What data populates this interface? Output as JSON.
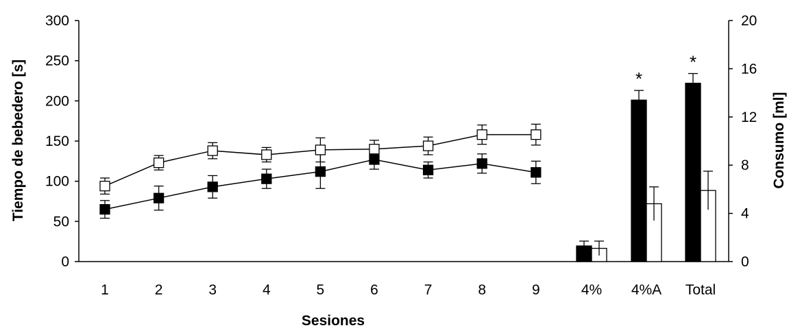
{
  "chart_data": {
    "type": "line+bar",
    "categories": [
      "1",
      "2",
      "3",
      "4",
      "5",
      "6",
      "7",
      "8",
      "9"
    ],
    "xlabel": "Sesiones",
    "ylabel_left": "Tiempo de bebedero [s]",
    "ylabel_right": "Consumo [ml]",
    "ylim_left": [
      0,
      300
    ],
    "yticks_left": [
      0,
      50,
      100,
      150,
      200,
      250,
      300
    ],
    "ylim_right": [
      0,
      20
    ],
    "yticks_right": [
      0,
      4,
      8,
      12,
      16,
      20
    ],
    "line_series": [
      {
        "marker": "filled-square",
        "values": [
          65,
          79,
          93,
          103,
          112,
          127,
          114,
          122,
          111
        ],
        "errors": [
          11,
          15,
          14,
          12,
          21,
          12,
          10,
          12,
          14
        ]
      },
      {
        "marker": "open-square",
        "values": [
          94,
          123,
          138,
          133,
          139,
          140,
          144,
          158,
          158
        ],
        "errors": [
          10,
          9,
          10,
          9,
          15,
          11,
          11,
          12,
          13
        ]
      }
    ],
    "bar_categories": [
      "4%",
      "4%A",
      "Total"
    ],
    "bar_series": [
      {
        "fill": "black",
        "values": [
          1.3,
          13.4,
          14.8
        ],
        "errors": [
          0.4,
          0.8,
          0.8
        ]
      },
      {
        "fill": "white",
        "values": [
          1.1,
          4.8,
          5.9
        ],
        "errors": [
          0.6,
          1.4,
          1.6
        ]
      }
    ],
    "annotations": [
      {
        "category": "4%A",
        "text": "*"
      },
      {
        "category": "Total",
        "text": "*"
      }
    ],
    "grid": false
  }
}
